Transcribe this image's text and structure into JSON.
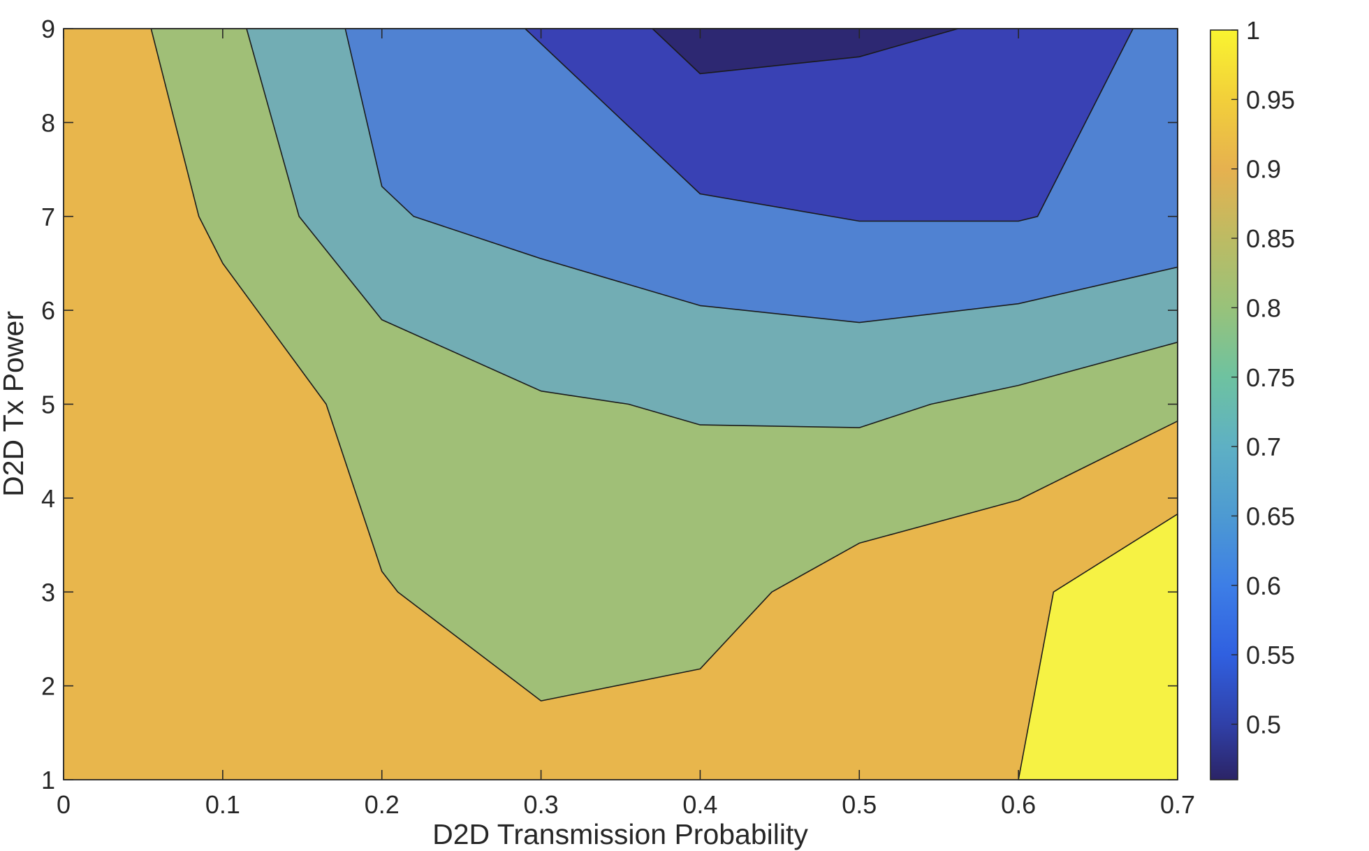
{
  "chart_data": {
    "type": "filled-contour",
    "xlabel": "D2D Transmission Probability",
    "ylabel": "D2D Tx Power",
    "xlim": [
      0,
      0.7
    ],
    "ylim": [
      1,
      9
    ],
    "xticks": [
      "0",
      "0.1",
      "0.2",
      "0.3",
      "0.4",
      "0.5",
      "0.6",
      "0.7"
    ],
    "yticks": [
      "1",
      "2",
      "3",
      "4",
      "5",
      "6",
      "7",
      "8",
      "9"
    ],
    "colorbar": {
      "range": [
        0.46,
        1
      ],
      "ticks": [
        "0.5",
        "0.55",
        "0.6",
        "0.65",
        "0.7",
        "0.75",
        "0.8",
        "0.85",
        "0.9",
        "0.95",
        "1"
      ],
      "stops": [
        {
          "value": 0.46,
          "color": "#2b2466"
        },
        {
          "value": 0.5,
          "color": "#3040a8"
        },
        {
          "value": 0.55,
          "color": "#3060e0"
        },
        {
          "value": 0.6,
          "color": "#3d7ee6"
        },
        {
          "value": 0.65,
          "color": "#4d9ad2"
        },
        {
          "value": 0.7,
          "color": "#5eb0c4"
        },
        {
          "value": 0.75,
          "color": "#6ec2a0"
        },
        {
          "value": 0.8,
          "color": "#98c27a"
        },
        {
          "value": 0.85,
          "color": "#bdbb63"
        },
        {
          "value": 0.9,
          "color": "#e6b14f"
        },
        {
          "value": 0.95,
          "color": "#f2cf3a"
        },
        {
          "value": 1.0,
          "color": "#f9f430"
        }
      ]
    },
    "regions": [
      {
        "level": 0.9,
        "color": "#e8b64c",
        "points": [
          [
            0,
            1
          ],
          [
            0.7,
            1
          ],
          [
            0.7,
            9
          ],
          [
            0,
            9
          ]
        ]
      },
      {
        "level": 0.8,
        "color": "#a0bf77",
        "points": [
          [
            0.055,
            9
          ],
          [
            0.085,
            7.0
          ],
          [
            0.1,
            6.5
          ],
          [
            0.165,
            5.0
          ],
          [
            0.2,
            3.22
          ],
          [
            0.21,
            3.0
          ],
          [
            0.3,
            1.84
          ],
          [
            0.4,
            2.18
          ],
          [
            0.445,
            3.0
          ],
          [
            0.5,
            3.52
          ],
          [
            0.6,
            3.98
          ],
          [
            0.7,
            4.82
          ],
          [
            0.7,
            9
          ]
        ]
      },
      {
        "level": 0.7,
        "color": "#72adb4",
        "points": [
          [
            0.115,
            9
          ],
          [
            0.148,
            7.0
          ],
          [
            0.2,
            5.9
          ],
          [
            0.3,
            5.14
          ],
          [
            0.355,
            5.0
          ],
          [
            0.4,
            4.78
          ],
          [
            0.5,
            4.75
          ],
          [
            0.545,
            5.0
          ],
          [
            0.6,
            5.2
          ],
          [
            0.7,
            5.66
          ],
          [
            0.7,
            9
          ]
        ]
      },
      {
        "level": 0.6,
        "color": "#5082d2",
        "points": [
          [
            0.177,
            9
          ],
          [
            0.2,
            7.32
          ],
          [
            0.22,
            7.0
          ],
          [
            0.3,
            6.55
          ],
          [
            0.4,
            6.05
          ],
          [
            0.5,
            5.87
          ],
          [
            0.6,
            6.07
          ],
          [
            0.7,
            6.46
          ],
          [
            0.7,
            9
          ]
        ]
      },
      {
        "level": 0.5,
        "color": "#3941b4",
        "points": [
          [
            0.29,
            9
          ],
          [
            0.4,
            7.24
          ],
          [
            0.5,
            6.95
          ],
          [
            0.6,
            6.95
          ],
          [
            0.612,
            7.0
          ],
          [
            0.672,
            9
          ]
        ]
      },
      {
        "level": 0.46,
        "color": "#2d2872",
        "points": [
          [
            0.37,
            9
          ],
          [
            0.4,
            8.52
          ],
          [
            0.5,
            8.7
          ],
          [
            0.562,
            9
          ]
        ]
      },
      {
        "level": 1.0,
        "color": "#f6f244",
        "points": [
          [
            0.6,
            1
          ],
          [
            0.622,
            3.0
          ],
          [
            0.7,
            3.83
          ],
          [
            0.7,
            1
          ]
        ]
      }
    ]
  }
}
